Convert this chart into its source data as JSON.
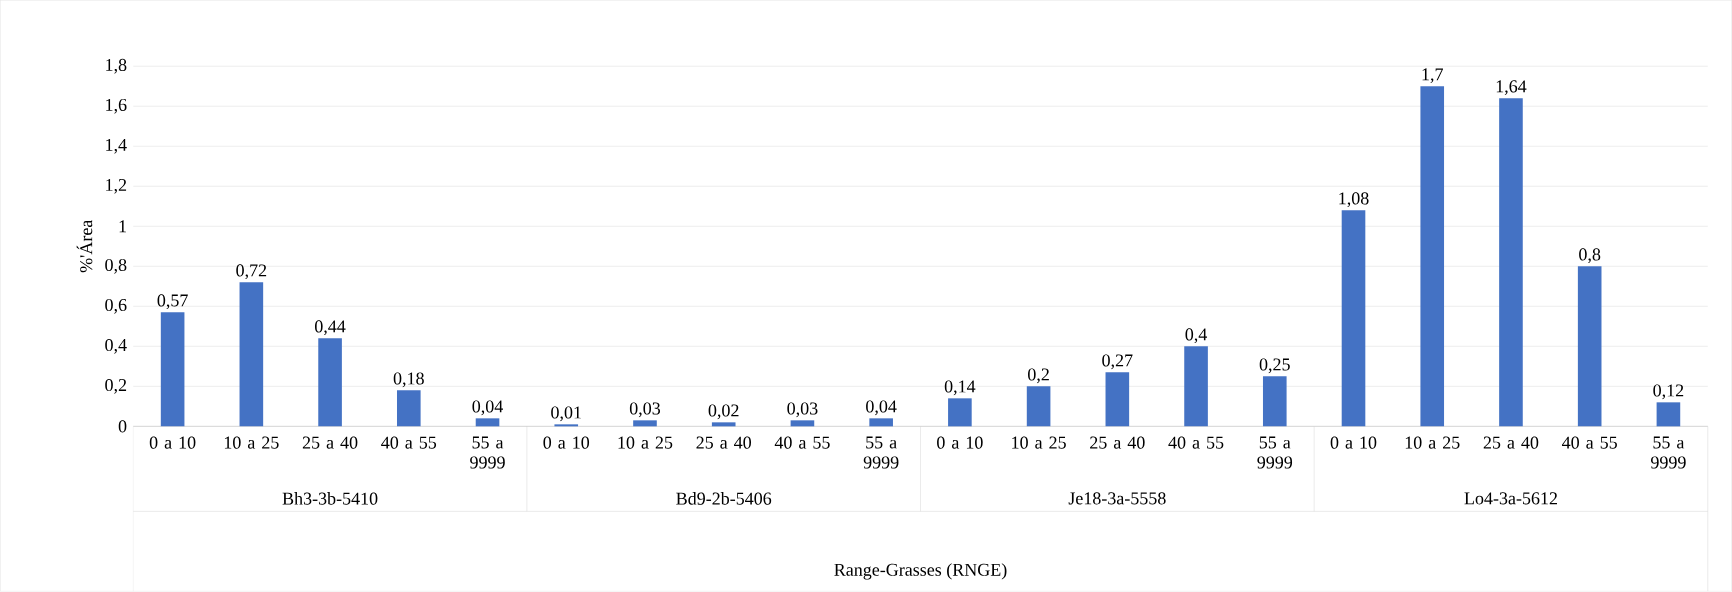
{
  "chart_data": {
    "type": "bar",
    "ylabel": "%'Área",
    "categories": [
      "0 a 10",
      "10 a 25",
      "25 a 40",
      "40 a 55",
      "55 a 9999",
      "0 a 10",
      "10 a 25",
      "25 a 40",
      "40 a 55",
      "55 a 9999",
      "0 a 10",
      "10 a 25",
      "25 a 40",
      "40 a 55",
      "55 a 9999",
      "0 a 10",
      "10 a 25",
      "25 a 40",
      "40 a 55",
      "55 a 9999"
    ],
    "values": [
      0.57,
      0.72,
      0.44,
      0.18,
      0.04,
      0.01,
      0.03,
      0.02,
      0.03,
      0.04,
      0.14,
      0.2,
      0.27,
      0.4,
      0.25,
      1.08,
      1.7,
      1.64,
      0.8,
      0.12
    ],
    "value_labels": [
      "0,57",
      "0,72",
      "0,44",
      "0,18",
      "0,04",
      "0,01",
      "0,03",
      "0,02",
      "0,03",
      "0,04",
      "0,14",
      "0,2",
      "0,27",
      "0,4",
      "0,25",
      "1,08",
      "1,7",
      "1,64",
      "0,8",
      "0,12"
    ],
    "annotations": [
      "Bh3-3b-5410",
      "Bd9-2b-5406",
      "Je18-3a-5558",
      "Lo4-3a-5612",
      "Range-Grasses (RNGE)"
    ],
    "color": "#4472c4",
    "grid": "y",
    "ylim": [
      0,
      1.8
    ],
    "yticks": [
      0,
      {
        "value": 0.2,
        "label": "0,2"
      },
      {
        "value": 0.4,
        "label": "0,4"
      },
      {
        "value": 0.6,
        "label": "0,6"
      },
      {
        "value": 0.8,
        "label": "0,8"
      },
      1,
      {
        "value": 1.2,
        "label": "1,2"
      },
      {
        "value": 1.4,
        "label": "1,4"
      },
      {
        "value": 1.6,
        "label": "1,6"
      },
      {
        "value": 1.8,
        "label": "1,8"
      }
    ]
  }
}
